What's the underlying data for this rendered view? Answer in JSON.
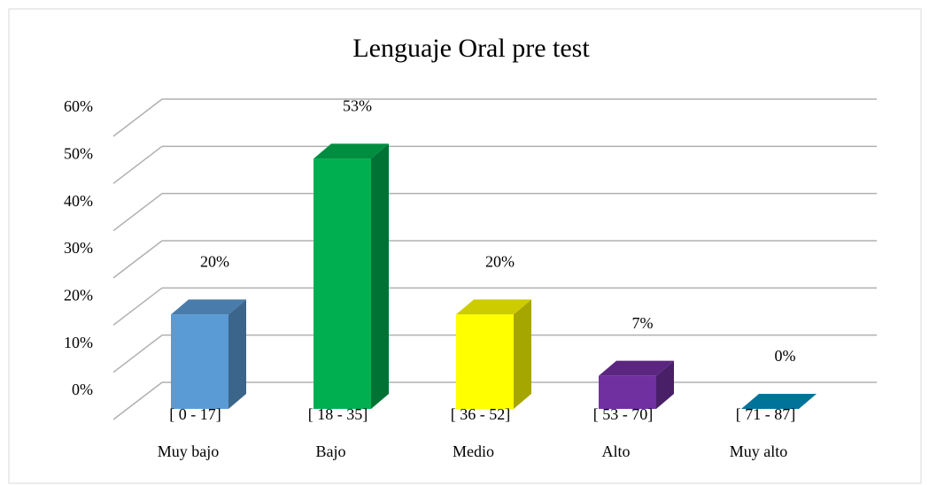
{
  "chart_data": {
    "type": "bar3d",
    "title": "Lenguaje Oral pre test",
    "categories": [
      "Muy bajo",
      "Bajo",
      "Medio",
      "Alto",
      "Muy alto"
    ],
    "ranges": [
      "[ 0 - 17]",
      "[ 18 - 35]",
      "[ 36 - 52]",
      "[ 53 - 70]",
      "[ 71 - 87]"
    ],
    "values": [
      20,
      53,
      20,
      7,
      0
    ],
    "value_labels": [
      "20%",
      "53%",
      "20%",
      "7%",
      "0%"
    ],
    "colors": [
      "#5b9bd5",
      "#00b050",
      "#ffff00",
      "#7030a0",
      "#0090c0"
    ],
    "ylim": [
      0,
      60
    ],
    "yticks": [
      {
        "value": 0,
        "label": "0%"
      },
      {
        "value": 10,
        "label": "10%"
      },
      {
        "value": 20,
        "label": "20%"
      },
      {
        "value": 30,
        "label": "30%"
      },
      {
        "value": 40,
        "label": "40%"
      },
      {
        "value": 50,
        "label": "50%"
      },
      {
        "value": 60,
        "label": "60%"
      }
    ],
    "grid": true
  }
}
